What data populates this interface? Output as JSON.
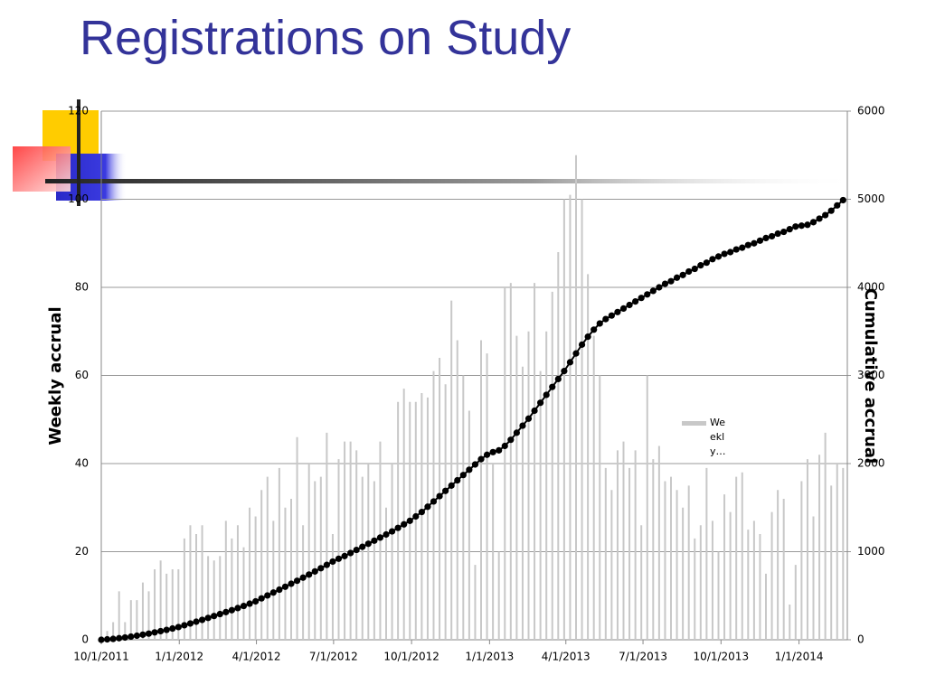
{
  "chart_data": {
    "type": "combo",
    "title": "Registrations on Study",
    "ylabel": "Weekly accrual",
    "y2label": "Cumulative accrual",
    "xlim": [
      0,
      880
    ],
    "xticks": [
      {
        "value": 0,
        "label": "10/1/2011"
      },
      {
        "value": 92,
        "label": "1/1/2012"
      },
      {
        "value": 183,
        "label": "4/1/2012"
      },
      {
        "value": 274,
        "label": "7/1/2012"
      },
      {
        "value": 366,
        "label": "10/1/2012"
      },
      {
        "value": 458,
        "label": "1/1/2013"
      },
      {
        "value": 548,
        "label": "4/1/2013"
      },
      {
        "value": 639,
        "label": "7/1/2013"
      },
      {
        "value": 731,
        "label": "10/1/2013"
      },
      {
        "value": 823,
        "label": "1/1/2014"
      }
    ],
    "ylim": [
      0,
      120
    ],
    "yticks": [
      0,
      20,
      40,
      60,
      80,
      100,
      120
    ],
    "y2lim": [
      0,
      6000
    ],
    "y2ticks": [
      0,
      1000,
      2000,
      3000,
      4000,
      5000,
      6000
    ],
    "grid": true,
    "legend": "center-right",
    "x": [
      0,
      7,
      14,
      21,
      28,
      35,
      42,
      49,
      56,
      63,
      70,
      77,
      84,
      91,
      98,
      105,
      112,
      119,
      126,
      133,
      140,
      147,
      154,
      161,
      168,
      175,
      182,
      189,
      196,
      203,
      210,
      217,
      224,
      231,
      238,
      245,
      252,
      259,
      266,
      273,
      280,
      287,
      294,
      301,
      308,
      315,
      322,
      329,
      336,
      343,
      350,
      357,
      364,
      371,
      378,
      385,
      392,
      399,
      406,
      413,
      420,
      427,
      434,
      441,
      448,
      455,
      462,
      469,
      476,
      483,
      490,
      497,
      504,
      511,
      518,
      525,
      532,
      539,
      546,
      553,
      560,
      567,
      574,
      581,
      588,
      595,
      602,
      609,
      616,
      623,
      630,
      637,
      644,
      651,
      658,
      665,
      672,
      679,
      686,
      693,
      700,
      707,
      714,
      721,
      728,
      735,
      742,
      749,
      756,
      763,
      770,
      777,
      784,
      791,
      798,
      805,
      812,
      819,
      826,
      833,
      840,
      847,
      854,
      861,
      868,
      875
    ],
    "series": [
      {
        "name": "Weekly…",
        "type": "bar",
        "color": "#c8c8c8",
        "values": [
          1,
          2,
          4,
          11,
          4,
          9,
          9,
          13,
          11,
          16,
          18,
          15,
          16,
          16,
          23,
          26,
          24,
          26,
          19,
          18,
          19,
          27,
          23,
          26,
          21,
          30,
          28,
          34,
          37,
          27,
          39,
          30,
          32,
          46,
          26,
          40,
          36,
          37,
          47,
          24,
          41,
          45,
          45,
          43,
          37,
          40,
          36,
          45,
          30,
          40,
          54,
          57,
          54,
          54,
          56,
          55,
          61,
          64,
          58,
          77,
          68,
          60,
          52,
          17,
          68,
          65,
          40,
          20,
          80,
          81,
          69,
          62,
          70,
          81,
          61,
          70,
          79,
          88,
          100,
          101,
          110,
          100,
          83,
          69,
          60,
          39,
          34,
          43,
          45,
          39,
          43,
          26,
          60,
          41,
          44,
          36,
          37,
          34,
          30,
          35,
          23,
          26,
          39,
          27,
          20,
          33,
          29,
          37,
          38,
          25,
          27,
          24,
          15,
          29,
          34,
          32,
          8,
          17,
          36,
          41,
          28,
          42,
          47,
          35,
          40,
          39
        ]
      },
      {
        "type": "line",
        "axis": "y2",
        "color": "#000000",
        "values": [
          0,
          5,
          10,
          18,
          26,
          36,
          46,
          58,
          70,
          84,
          98,
          112,
          128,
          144,
          165,
          185,
          205,
          226,
          248,
          270,
          292,
          314,
          336,
          360,
          384,
          410,
          436,
          470,
          503,
          536,
          569,
          602,
          636,
          670,
          705,
          740,
          776,
          812,
          850,
          888,
          920,
          950,
          985,
          1020,
          1055,
          1090,
          1125,
          1160,
          1195,
          1230,
          1270,
          1310,
          1350,
          1400,
          1450,
          1510,
          1570,
          1630,
          1690,
          1750,
          1810,
          1870,
          1930,
          1990,
          2050,
          2100,
          2130,
          2150,
          2200,
          2270,
          2350,
          2430,
          2510,
          2600,
          2690,
          2780,
          2870,
          2960,
          3050,
          3150,
          3250,
          3350,
          3440,
          3520,
          3590,
          3640,
          3680,
          3720,
          3760,
          3800,
          3840,
          3880,
          3920,
          3960,
          4000,
          4040,
          4070,
          4110,
          4140,
          4180,
          4210,
          4250,
          4280,
          4320,
          4350,
          4380,
          4400,
          4430,
          4450,
          4480,
          4500,
          4530,
          4560,
          4580,
          4610,
          4630,
          4660,
          4690,
          4700,
          4710,
          4740,
          4780,
          4820,
          4870,
          4930,
          4990
        ]
      }
    ]
  }
}
